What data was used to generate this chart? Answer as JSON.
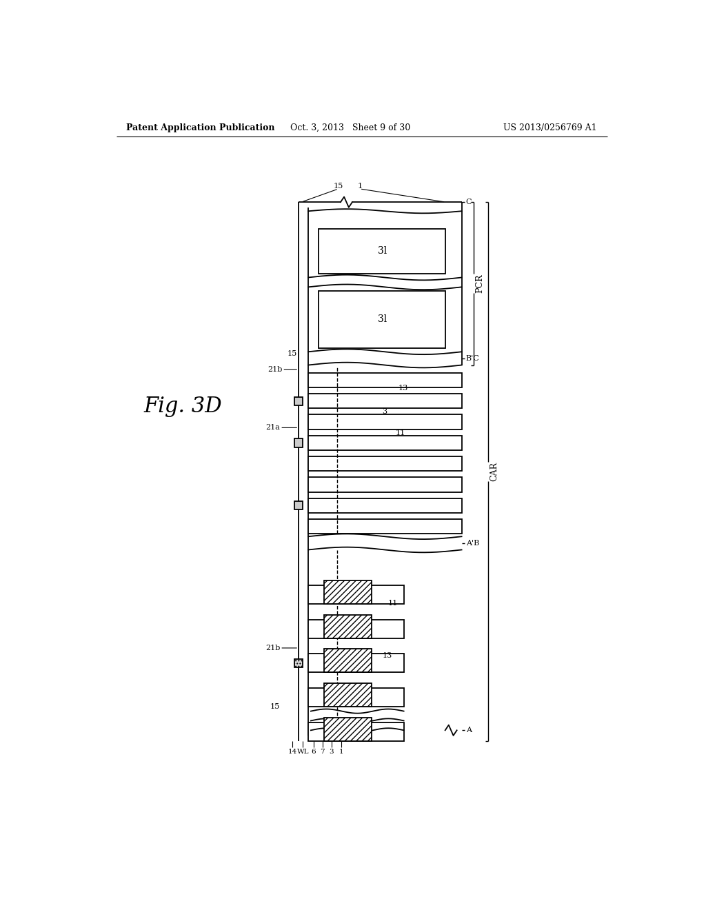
{
  "title_left": "Patent Application Publication",
  "title_center": "Oct. 3, 2013   Sheet 9 of 30",
  "title_right": "US 2013/0256769 A1",
  "fig_label": "Fig. 3D",
  "background": "#ffffff"
}
